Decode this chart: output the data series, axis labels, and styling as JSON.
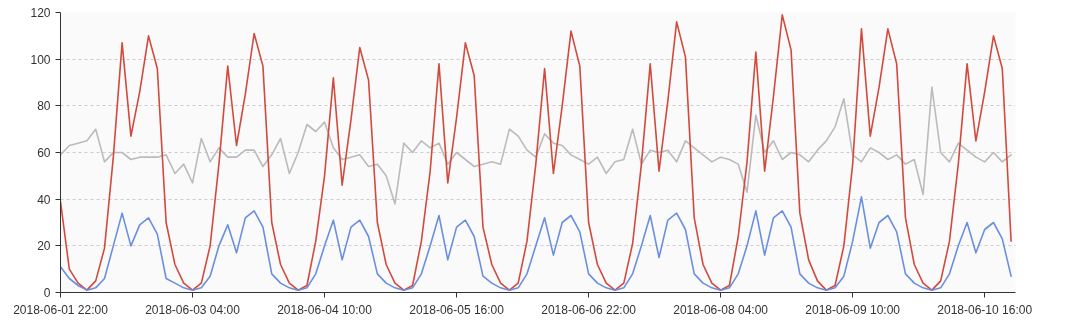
{
  "chart_data": {
    "type": "line",
    "x": [
      "2018-06-01T22:00",
      "2018-06-02T00:00",
      "2018-06-02T02:00",
      "2018-06-02T04:00",
      "2018-06-02T06:00",
      "2018-06-02T08:00",
      "2018-06-02T10:00",
      "2018-06-02T12:00",
      "2018-06-02T14:00",
      "2018-06-02T16:00",
      "2018-06-02T18:00",
      "2018-06-02T20:00",
      "2018-06-02T22:00",
      "2018-06-03T00:00",
      "2018-06-03T02:00",
      "2018-06-03T04:00",
      "2018-06-03T06:00",
      "2018-06-03T08:00",
      "2018-06-03T10:00",
      "2018-06-03T12:00",
      "2018-06-03T14:00",
      "2018-06-03T16:00",
      "2018-06-03T18:00",
      "2018-06-03T20:00",
      "2018-06-03T22:00",
      "2018-06-04T00:00",
      "2018-06-04T02:00",
      "2018-06-04T04:00",
      "2018-06-04T06:00",
      "2018-06-04T08:00",
      "2018-06-04T10:00",
      "2018-06-04T12:00",
      "2018-06-04T14:00",
      "2018-06-04T16:00",
      "2018-06-04T18:00",
      "2018-06-04T20:00",
      "2018-06-04T22:00",
      "2018-06-05T00:00",
      "2018-06-05T02:00",
      "2018-06-05T04:00",
      "2018-06-05T06:00",
      "2018-06-05T08:00",
      "2018-06-05T10:00",
      "2018-06-05T12:00",
      "2018-06-05T14:00",
      "2018-06-05T16:00",
      "2018-06-05T18:00",
      "2018-06-05T20:00",
      "2018-06-05T22:00",
      "2018-06-06T00:00",
      "2018-06-06T02:00",
      "2018-06-06T04:00",
      "2018-06-06T06:00",
      "2018-06-06T08:00",
      "2018-06-06T10:00",
      "2018-06-06T12:00",
      "2018-06-06T14:00",
      "2018-06-06T16:00",
      "2018-06-06T18:00",
      "2018-06-06T20:00",
      "2018-06-06T22:00",
      "2018-06-07T00:00",
      "2018-06-07T02:00",
      "2018-06-07T04:00",
      "2018-06-07T06:00",
      "2018-06-07T08:00",
      "2018-06-07T10:00",
      "2018-06-07T12:00",
      "2018-06-07T14:00",
      "2018-06-07T16:00",
      "2018-06-07T18:00",
      "2018-06-07T20:00",
      "2018-06-07T22:00",
      "2018-06-08T00:00",
      "2018-06-08T02:00",
      "2018-06-08T04:00",
      "2018-06-08T06:00",
      "2018-06-08T08:00",
      "2018-06-08T10:00",
      "2018-06-08T12:00",
      "2018-06-08T14:00",
      "2018-06-08T16:00",
      "2018-06-08T18:00",
      "2018-06-08T20:00",
      "2018-06-08T22:00",
      "2018-06-09T00:00",
      "2018-06-09T02:00",
      "2018-06-09T04:00",
      "2018-06-09T06:00",
      "2018-06-09T08:00",
      "2018-06-09T10:00",
      "2018-06-09T12:00",
      "2018-06-09T14:00",
      "2018-06-09T16:00",
      "2018-06-09T18:00",
      "2018-06-09T20:00",
      "2018-06-09T22:00",
      "2018-06-10T00:00",
      "2018-06-10T02:00",
      "2018-06-10T04:00",
      "2018-06-10T06:00",
      "2018-06-10T08:00",
      "2018-06-10T10:00",
      "2018-06-10T12:00",
      "2018-06-10T14:00",
      "2018-06-10T16:00",
      "2018-06-10T18:00",
      "2018-06-10T20:00",
      "2018-06-10T22:00"
    ],
    "series": [
      {
        "color": "#bbbbbb",
        "values": [
          59,
          63,
          64,
          65,
          70,
          56,
          60,
          60,
          57,
          58,
          58,
          58,
          59,
          51,
          55,
          47,
          66,
          56,
          62,
          58,
          58,
          61,
          61,
          54,
          59,
          66,
          51,
          60,
          72,
          69,
          73,
          62,
          57,
          58,
          59,
          54,
          55,
          50,
          38,
          64,
          60,
          65,
          62,
          64,
          55,
          60,
          57,
          54,
          55,
          56,
          55,
          70,
          67,
          61,
          58,
          68,
          64,
          63,
          59,
          57,
          55,
          58,
          51,
          56,
          57,
          70,
          55,
          61,
          60,
          61,
          56,
          65,
          62,
          59,
          56,
          58,
          57,
          55,
          43,
          76,
          60,
          65,
          57,
          60,
          59,
          56,
          61,
          65,
          71,
          83,
          59,
          56,
          62,
          60,
          57,
          59,
          55,
          57,
          42,
          88,
          60,
          56,
          64,
          61,
          58,
          56,
          60,
          56,
          59
        ]
      },
      {
        "color": "#d14a3d",
        "values": [
          39,
          10,
          4,
          1,
          5,
          19,
          58,
          107,
          67,
          86,
          110,
          96,
          30,
          12,
          4,
          1,
          4,
          20,
          55,
          97,
          63,
          85,
          111,
          97,
          30,
          12,
          4,
          1,
          3,
          22,
          50,
          92,
          46,
          74,
          105,
          91,
          30,
          12,
          4,
          1,
          3,
          22,
          52,
          98,
          47,
          75,
          107,
          93,
          28,
          12,
          4,
          1,
          4,
          22,
          55,
          96,
          51,
          80,
          112,
          97,
          30,
          12,
          4,
          1,
          4,
          21,
          55,
          98,
          52,
          82,
          116,
          101,
          32,
          12,
          4,
          1,
          3,
          24,
          56,
          103,
          52,
          84,
          119,
          104,
          34,
          14,
          5,
          1,
          3,
          20,
          55,
          113,
          67,
          88,
          113,
          98,
          32,
          12,
          4,
          1,
          5,
          22,
          55,
          98,
          65,
          86,
          110,
          96,
          22
        ]
      },
      {
        "color": "#6b8fe0",
        "values": [
          11,
          6,
          3,
          1,
          2,
          6,
          20,
          34,
          20,
          29,
          32,
          25,
          6,
          4,
          2,
          1,
          2,
          7,
          20,
          29,
          17,
          32,
          35,
          28,
          8,
          4,
          2,
          1,
          2,
          8,
          20,
          31,
          14,
          28,
          31,
          24,
          8,
          4,
          2,
          1,
          2,
          8,
          20,
          33,
          14,
          28,
          31,
          24,
          7,
          4,
          2,
          1,
          2,
          8,
          20,
          32,
          16,
          30,
          33,
          26,
          8,
          4,
          2,
          1,
          2,
          8,
          20,
          33,
          15,
          31,
          34,
          27,
          8,
          4,
          2,
          1,
          2,
          8,
          20,
          35,
          16,
          32,
          35,
          28,
          8,
          4,
          2,
          1,
          2,
          7,
          22,
          41,
          19,
          30,
          33,
          26,
          8,
          4,
          2,
          1,
          2,
          8,
          20,
          30,
          17,
          27,
          30,
          23,
          7
        ]
      }
    ],
    "xlim": [
      "2018-06-01T22:00",
      "2018-06-10T23:00"
    ],
    "xticks": [
      {
        "value": "2018-06-01T22:00",
        "label": "2018-06-01 22:00"
      },
      {
        "value": "2018-06-03T04:00",
        "label": "2018-06-03 04:00"
      },
      {
        "value": "2018-06-04T10:00",
        "label": "2018-06-04 10:00"
      },
      {
        "value": "2018-06-05T16:00",
        "label": "2018-06-05 16:00"
      },
      {
        "value": "2018-06-06T22:00",
        "label": "2018-06-06 22:00"
      },
      {
        "value": "2018-06-08T04:00",
        "label": "2018-06-08 04:00"
      },
      {
        "value": "2018-06-09T10:00",
        "label": "2018-06-09 10:00"
      },
      {
        "value": "2018-06-10T16:00",
        "label": "2018-06-10 16:00"
      }
    ],
    "ylim": [
      0,
      120
    ],
    "yticks": [
      0,
      20,
      40,
      60,
      80,
      100,
      120
    ],
    "grid": "y",
    "marker": "none",
    "line_style": "solid"
  }
}
